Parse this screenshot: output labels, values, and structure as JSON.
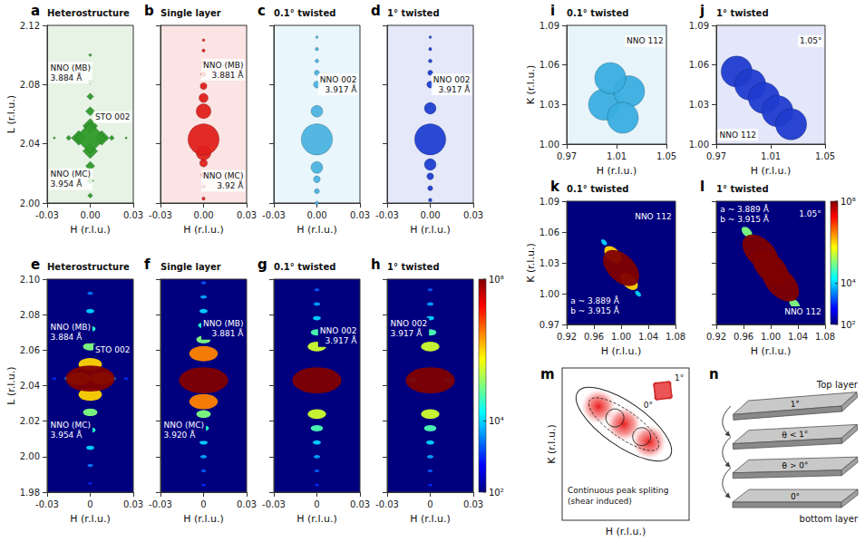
{
  "chart_data": [
    {
      "letter": "a",
      "title": "Heterostructure",
      "type": "surface",
      "marker": "diamond",
      "color": "#2f9a2a",
      "xlabel": "H (r.l.u.)",
      "ylabel": "L (r.l.u.)",
      "xlim": [
        -0.03,
        0.03
      ],
      "ylim": [
        2.0,
        2.12
      ],
      "xticks": [
        -0.03,
        {
          "value": 0,
          "label": "0.00"
        },
        0.03
      ],
      "yticks": [
        {
          "value": 2,
          "label": "2.00"
        },
        2.04,
        2.08,
        2.12
      ],
      "grid": false,
      "points": {
        "x": [
          0,
          0,
          0,
          -0.025,
          0.025,
          0,
          0,
          -0.015,
          0.015,
          0,
          0,
          0,
          -0.008,
          0.008,
          0,
          0,
          0
        ],
        "y": [
          2.1,
          2.092,
          2.005,
          2.044,
          2.044,
          2.082,
          2.015,
          2.044,
          2.044,
          2.072,
          2.025,
          2.062,
          2.044,
          2.044,
          2.035,
          2.052,
          2.044
        ],
        "intensity": [
          2000,
          3000,
          10000,
          1000,
          1000,
          10000,
          30000,
          10000,
          10000,
          30000,
          100000,
          100000,
          1000000,
          1000000,
          1000000,
          1000000,
          100000000
        ]
      },
      "annotations": [
        {
          "text": "NNO (MB)\n3.884 Å",
          "x": -0.029,
          "y": 2.088
        },
        {
          "text": "STO 002",
          "x": 0.029,
          "y": 2.058
        },
        {
          "text": "NNO (MC)\n3.954 Å",
          "x": -0.029,
          "y": 2.016
        }
      ]
    },
    {
      "letter": "b",
      "title": "Single layer",
      "type": "surface",
      "marker": "circle",
      "color": "#e0201c",
      "xlabel": "H (r.l.u.)",
      "xlim": [
        -0.03,
        0.03
      ],
      "ylim": [
        2.0,
        2.12
      ],
      "xticks": [
        -0.03,
        {
          "value": 0,
          "label": "0.00"
        },
        0.03
      ],
      "yticks": [
        {
          "value": 2,
          "label": "2.00"
        },
        2.04,
        2.08,
        2.12
      ],
      "grid": false,
      "tick_labels": "x",
      "points": {
        "x": [
          0,
          0,
          0,
          0,
          0,
          0,
          0,
          0,
          0,
          0,
          0,
          0,
          0
        ],
        "y": [
          2.11,
          2.103,
          2.003,
          2.095,
          2.011,
          2.087,
          2.019,
          2.079,
          2.027,
          2.071,
          2.062,
          2.034,
          2.043
        ],
        "intensity": [
          1000,
          2000,
          2000,
          5000,
          5000,
          10000,
          10000,
          30000,
          50000,
          100000,
          1000000,
          1000000,
          100000000
        ]
      },
      "annotations": [
        {
          "text": "NNO (MB)\n3.881 Å",
          "x": 0.029,
          "y": 2.09
        },
        {
          "text": "NNO (MC)\n3.92 Å",
          "x": 0.029,
          "y": 2.015
        }
      ]
    },
    {
      "letter": "c",
      "title": "0.1° twisted",
      "type": "surface",
      "marker": "circle",
      "color": "#4bb3e0",
      "xlabel": "H (r.l.u.)",
      "xlim": [
        -0.03,
        0.03
      ],
      "ylim": [
        2.0,
        2.12
      ],
      "xticks": [
        -0.03,
        {
          "value": 0,
          "label": "0.00"
        },
        0.03
      ],
      "yticks": [
        {
          "value": 2,
          "label": "2.00"
        },
        2.04,
        2.08,
        2.12
      ],
      "grid": false,
      "tick_labels": "x",
      "points": {
        "x": [
          0,
          0,
          0,
          0,
          0,
          0,
          0,
          0,
          0,
          0,
          0
        ],
        "y": [
          2.112,
          2.104,
          2.0,
          2.096,
          2.008,
          2.088,
          2.016,
          2.08,
          2.024,
          2.062,
          2.043
        ],
        "intensity": [
          1000,
          2000,
          3000,
          3000,
          10000,
          10000,
          30000,
          30000,
          300000,
          300000,
          100000000
        ]
      },
      "annotations": [
        {
          "text": "NNO 002\n3.917 Å",
          "x": 0.029,
          "y": 2.08
        }
      ]
    },
    {
      "letter": "d",
      "title": "1° twisted",
      "type": "surface",
      "marker": "circle",
      "color": "#1f3fd1",
      "xlabel": "H (r.l.u.)",
      "xlim": [
        -0.03,
        0.03
      ],
      "ylim": [
        2.0,
        2.12
      ],
      "xticks": [
        -0.03,
        {
          "value": 0,
          "label": "0.00"
        },
        0.03
      ],
      "yticks": [
        {
          "value": 2,
          "label": "2.00"
        },
        2.04,
        2.08,
        2.12
      ],
      "grid": false,
      "tick_labels": "x",
      "points": {
        "x": [
          0,
          0,
          0,
          0,
          0,
          0,
          0,
          0,
          0,
          0,
          0
        ],
        "y": [
          2.112,
          2.104,
          2.002,
          2.096,
          2.01,
          2.088,
          2.018,
          2.08,
          2.026,
          2.064,
          2.043
        ],
        "intensity": [
          1000,
          2000,
          3000,
          3000,
          10000,
          10000,
          30000,
          30000,
          300000,
          300000,
          100000000
        ]
      },
      "annotations": [
        {
          "text": "NNO 002\n3.917 Å",
          "x": 0.029,
          "y": 2.08
        }
      ]
    },
    {
      "letter": "e",
      "title": "Heterostructure",
      "type": "heatmap",
      "xlabel": "H (r.l.u.)",
      "ylabel": "L (r.l.u.)",
      "xlim": [
        -0.03,
        0.03
      ],
      "ylim": [
        1.98,
        2.1
      ],
      "xticks": [
        -0.03,
        0,
        0.03
      ],
      "yticks": [
        1.98,
        {
          "value": 2,
          "label": "2.00"
        },
        2.02,
        2.04,
        2.06,
        2.08,
        {
          "value": 2.1,
          "label": "2.10"
        }
      ],
      "grid": false,
      "points": {
        "x": [
          0,
          0,
          0,
          -0.025,
          0.025,
          0,
          0,
          -0.015,
          0.015,
          0,
          0,
          0,
          0,
          -0.008,
          0.008,
          0,
          0,
          0
        ],
        "y": [
          1.985,
          1.995,
          2.092,
          2.044,
          2.044,
          2.005,
          2.082,
          2.044,
          2.044,
          2.015,
          2.072,
          2.025,
          2.062,
          2.044,
          2.044,
          2.035,
          2.052,
          2.044
        ],
        "intensity": [
          1000,
          3000,
          3000,
          1000,
          1000,
          10000,
          10000,
          10000,
          10000,
          30000,
          30000,
          100000,
          100000,
          1000000,
          1000000,
          1000000,
          1000000,
          100000000
        ]
      },
      "annotations": [
        {
          "text": "NNO (MB)\n3.884 Å",
          "x": -0.029,
          "y": 2.07
        },
        {
          "text": "STO 002",
          "x": 0.029,
          "y": 2.06
        },
        {
          "text": "NNO (MC)\n3.954 Å",
          "x": -0.029,
          "y": 2.015
        }
      ]
    },
    {
      "letter": "f",
      "title": "Single layer",
      "type": "heatmap",
      "xlabel": "H (r.l.u.)",
      "xlim": [
        -0.03,
        0.03
      ],
      "ylim": [
        1.98,
        2.1
      ],
      "xticks": [
        -0.03,
        0,
        0.03
      ],
      "yticks": [
        1.98,
        {
          "value": 2,
          "label": "2.00"
        },
        2.02,
        2.04,
        2.06,
        2.08,
        {
          "value": 2.1,
          "label": "2.10"
        }
      ],
      "grid": false,
      "tick_labels": "x",
      "points": {
        "x": [
          0,
          0,
          0,
          0,
          0,
          0,
          0,
          0,
          0,
          0,
          0,
          0,
          0,
          0
        ],
        "y": [
          1.984,
          2.098,
          1.992,
          2.09,
          2.0,
          2.082,
          2.008,
          2.016,
          2.074,
          2.024,
          2.066,
          2.058,
          2.031,
          2.043
        ],
        "intensity": [
          1000,
          2000,
          2000,
          5000,
          5000,
          10000,
          10000,
          30000,
          30000,
          100000,
          100000,
          3000000,
          3000000,
          100000000
        ]
      },
      "annotations": [
        {
          "text": "NNO (MB)\n3.881 Å",
          "x": 0.029,
          "y": 2.072
        },
        {
          "text": "NNO (MC)\n3.920 Å",
          "x": -0.029,
          "y": 2.015
        }
      ]
    },
    {
      "letter": "g",
      "title": "0.1° twisted",
      "type": "heatmap",
      "xlabel": "H (r.l.u.)",
      "xlim": [
        -0.03,
        0.03
      ],
      "ylim": [
        1.98,
        2.1
      ],
      "xticks": [
        -0.03,
        0,
        0.03
      ],
      "yticks": [
        1.98,
        {
          "value": 2,
          "label": "2.00"
        },
        2.02,
        2.04,
        2.06,
        2.08,
        {
          "value": 2.1,
          "label": "2.10"
        }
      ],
      "grid": false,
      "tick_labels": "x",
      "points": {
        "x": [
          0,
          0,
          0,
          0,
          0,
          0,
          0,
          0,
          0,
          0,
          0,
          0
        ],
        "y": [
          1.984,
          2.094,
          1.992,
          2.0,
          2.086,
          2.008,
          2.078,
          2.016,
          2.07,
          2.024,
          2.062,
          2.043
        ],
        "intensity": [
          1000,
          2000,
          2000,
          5000,
          5000,
          10000,
          10000,
          50000,
          50000,
          300000,
          300000,
          100000000
        ]
      },
      "annotations": [
        {
          "text": "NNO 002\n3.917 Å",
          "x": 0.029,
          "y": 2.068
        }
      ]
    },
    {
      "letter": "h",
      "title": "1° twisted",
      "type": "heatmap",
      "xlabel": "H (r.l.u.)",
      "xlim": [
        -0.03,
        0.03
      ],
      "ylim": [
        1.98,
        2.1
      ],
      "xticks": [
        -0.03,
        0,
        0.03
      ],
      "yticks": [
        1.98,
        {
          "value": 2,
          "label": "2.00"
        },
        2.02,
        2.04,
        2.06,
        2.08,
        {
          "value": 2.1,
          "label": "2.10"
        }
      ],
      "grid": false,
      "tick_labels": "x",
      "points": {
        "x": [
          -0.012,
          0.012,
          0,
          0,
          0,
          0,
          0,
          0,
          0,
          0,
          0,
          0,
          0,
          0
        ],
        "y": [
          2.043,
          2.043,
          1.984,
          2.094,
          1.992,
          2.0,
          2.086,
          2.008,
          2.078,
          2.016,
          2.07,
          2.024,
          2.062,
          2.043
        ],
        "intensity": [
          10000,
          10000,
          1000,
          2000,
          2000,
          5000,
          5000,
          10000,
          10000,
          50000,
          50000,
          300000,
          300000,
          100000000
        ]
      },
      "annotations": [
        {
          "text": "NNO 002\n3.917 Å",
          "x": -0.029,
          "y": 2.072
        }
      ],
      "colorbar": {
        "range": [
          100,
          100000000
        ],
        "ticks": [
          {
            "value": 100000000,
            "label": "10⁸"
          },
          {
            "value": 10000,
            "label": "10⁴"
          },
          {
            "value": 100,
            "label": "10²"
          }
        ]
      }
    },
    {
      "letter": "i",
      "title": "0.1° twisted",
      "type": "surface",
      "marker": "circle",
      "color": "#3aaee0",
      "xlabel": "H (r.l.u.)",
      "ylabel": "K (r.l.u.)",
      "xlim": [
        0.97,
        1.05
      ],
      "ylim": [
        1.0,
        1.09
      ],
      "xticks": [
        0.97,
        1.01,
        1.05
      ],
      "yticks": [
        {
          "value": 1,
          "label": "1.00"
        },
        1.03,
        1.06,
        1.09
      ],
      "grid": false,
      "points": {
        "x": [
          1.0,
          1.02,
          1.005,
          1.015
        ],
        "y": [
          1.03,
          1.04,
          1.05,
          1.02
        ],
        "intensity": [
          100000000,
          100000000,
          100000000,
          100000000
        ]
      },
      "annotations": [
        {
          "text": "NNO 112",
          "x": 1.049,
          "y": 1.078
        }
      ]
    },
    {
      "letter": "j",
      "title": "1° twisted",
      "type": "surface",
      "marker": "circle",
      "color": "#1f3ccf",
      "xlabel": "H (r.l.u.)",
      "xlim": [
        0.97,
        1.05
      ],
      "ylim": [
        1.0,
        1.09
      ],
      "xticks": [
        0.97,
        1.01,
        1.05
      ],
      "yticks": [
        {
          "value": 1,
          "label": "1.00"
        },
        1.03,
        1.06,
        1.09
      ],
      "grid": false,
      "points": {
        "x": [
          0.985,
          0.995,
          1.005,
          1.015,
          1.025
        ],
        "y": [
          1.055,
          1.045,
          1.035,
          1.025,
          1.015
        ],
        "intensity": [
          100000000,
          100000000,
          100000000,
          100000000,
          100000000
        ]
      },
      "annotations": [
        {
          "text": "NNO 112",
          "x": 0.971,
          "y": 1.007
        },
        {
          "text": "1.05°",
          "x": 1.049,
          "y": 1.078
        }
      ]
    },
    {
      "letter": "k",
      "title": "0.1° twisted",
      "type": "heatmap",
      "xlabel": "H (r.l.u.)",
      "ylabel": "K (r.l.u.)",
      "xlim": [
        0.92,
        1.08
      ],
      "ylim": [
        0.97,
        1.09
      ],
      "xticks": [
        0.92,
        0.96,
        {
          "value": 1,
          "label": "1.00"
        },
        1.04,
        1.08
      ],
      "yticks": [
        0.97,
        {
          "value": 1,
          "label": "1.00"
        },
        1.03,
        1.06,
        1.09
      ],
      "grid": false,
      "points": {
        "x": [
          0.975,
          1.025,
          0.988,
          1.012,
          1.0
        ],
        "y": [
          1.05,
          1.0,
          1.038,
          1.012,
          1.025
        ],
        "intensity": [
          10000,
          10000,
          1000000,
          1000000,
          100000000
        ]
      },
      "annotations": [
        {
          "text": "NNO 112",
          "x": 1.077,
          "y": 1.075
        },
        {
          "text": "a ~ 3.889 Å\nb ~ 3.915 Å",
          "x": 0.923,
          "y": 0.988
        }
      ]
    },
    {
      "letter": "l",
      "title": "1° twisted",
      "type": "heatmap",
      "xlabel": "H (r.l.u.)",
      "xlim": [
        0.92,
        1.08
      ],
      "ylim": [
        0.97,
        1.09
      ],
      "xticks": [
        0.92,
        0.96,
        {
          "value": 1,
          "label": "1.00"
        },
        1.04,
        1.08
      ],
      "yticks": [
        0.97,
        {
          "value": 1,
          "label": "1.00"
        },
        1.03,
        1.06,
        1.09
      ],
      "grid": false,
      "tick_labels": "x",
      "points": {
        "x": [
          0.965,
          1.035,
          0.985,
          1.0,
          1.015
        ],
        "y": [
          1.06,
          0.99,
          1.04,
          1.025,
          1.01
        ],
        "intensity": [
          100000,
          100000,
          100000000,
          100000000,
          100000000
        ]
      },
      "annotations": [
        {
          "text": "a ~ 3.889 Å\nb ~ 3.915 Å",
          "x": 0.923,
          "y": 1.077
        },
        {
          "text": "1.05°",
          "x": 1.077,
          "y": 1.078
        },
        {
          "text": "NNO 112",
          "x": 1.077,
          "y": 0.982
        }
      ],
      "colorbar": {
        "range": [
          100,
          100000000
        ],
        "ticks": [
          {
            "value": 100000000,
            "label": "10⁸"
          },
          {
            "value": 10000,
            "label": "10⁴"
          },
          {
            "value": 100,
            "label": "10²"
          }
        ]
      }
    }
  ],
  "schematics": [
    {
      "letter": "m",
      "xlabel": "H (r.l.u.)",
      "ylabel": "K (r.l.u.)",
      "caption": "Continuous peak spliting (shear induced)",
      "inset_labels": [
        "1°",
        "0°"
      ]
    },
    {
      "letter": "n",
      "top": "Top layer",
      "slabs": [
        "1°",
        "θ < 1°",
        "θ > 0°",
        "0°"
      ],
      "bottom": "bottom layer"
    }
  ]
}
